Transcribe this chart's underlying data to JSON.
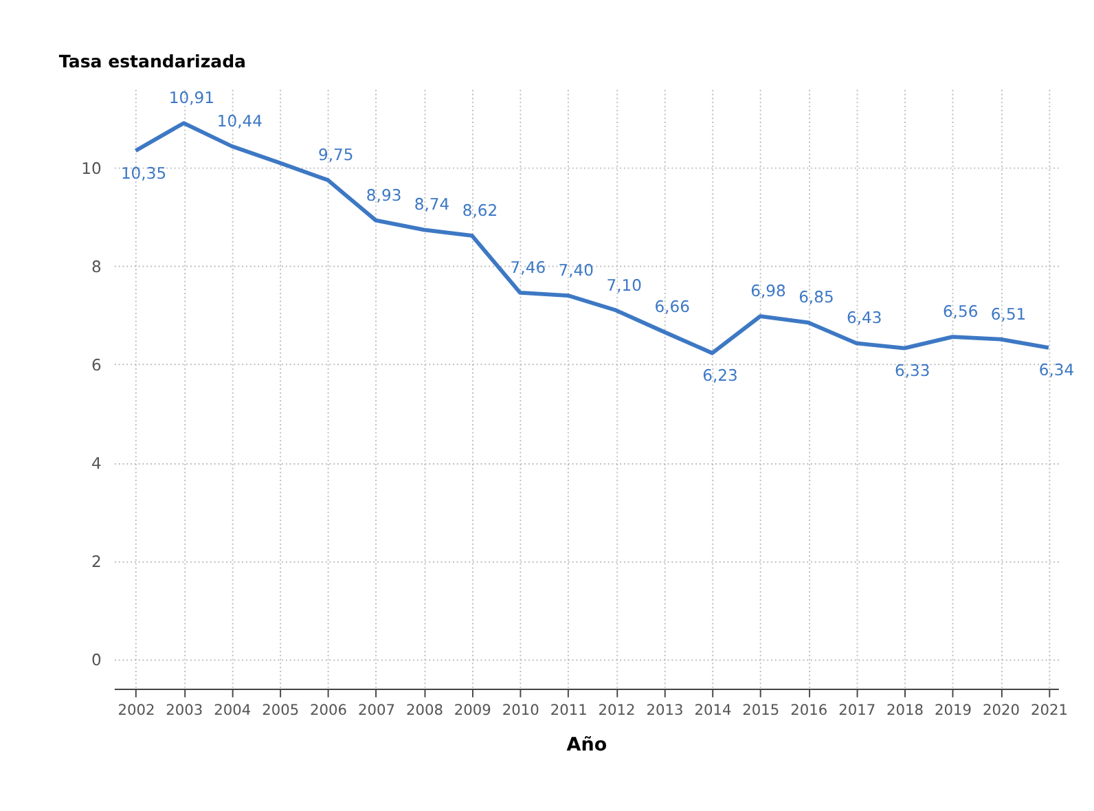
{
  "chart_data": {
    "type": "line",
    "ylabel": "Tasa estandarizada",
    "xlabel": "Año",
    "x": [
      2002,
      2003,
      2004,
      2005,
      2006,
      2007,
      2008,
      2009,
      2010,
      2011,
      2012,
      2013,
      2014,
      2015,
      2016,
      2017,
      2018,
      2019,
      2020,
      2021
    ],
    "series": [
      {
        "color": "#3d78c4",
        "values": [
          10.35,
          10.91,
          10.44,
          10.1,
          9.75,
          8.93,
          8.74,
          8.62,
          7.46,
          7.4,
          7.1,
          6.66,
          6.23,
          6.98,
          6.85,
          6.43,
          6.33,
          6.56,
          6.51,
          6.34
        ],
        "value_labels": [
          "10,35",
          "10,91",
          "10,44",
          null,
          "9,75",
          "8,93",
          "8,74",
          "8,62",
          "7,46",
          "7,40",
          "7,10",
          "6,66",
          "6,23",
          "6,98",
          "6,85",
          "6,43",
          "6,33",
          "6,56",
          "6,51",
          "6,34"
        ]
      }
    ],
    "xlim": [
      2001.55,
      2021.2
    ],
    "xticks": [
      2002,
      2003,
      2004,
      2005,
      2006,
      2007,
      2008,
      2009,
      2010,
      2011,
      2012,
      2013,
      2014,
      2015,
      2016,
      2017,
      2018,
      2019,
      2020,
      2021
    ],
    "ylim": [
      -0.6,
      11.6
    ],
    "yticks": [
      0,
      2,
      4,
      6,
      8,
      10
    ],
    "grid": true,
    "marker": "none",
    "line_style": "solid"
  }
}
